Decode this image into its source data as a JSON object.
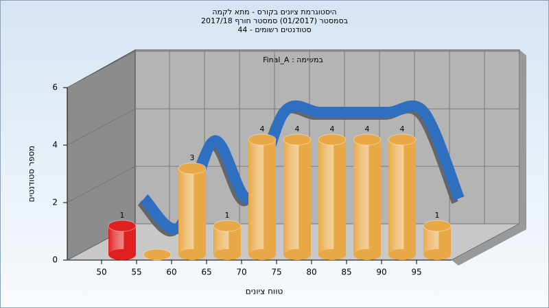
{
  "chart_data": {
    "type": "bar3d",
    "title": [
      "היסטוגרמת ציונים בקורס - מתא לקמה",
      "בסמסטר  (01/2017)  סמסטר חורף 2017/18",
      "סטודנטים רשומים - 44"
    ],
    "annotation": "Final_A : במשימה",
    "x_label": "טווח ציונים",
    "y_label": "מספר סטודנטים",
    "categories": [
      "50",
      "55",
      "60",
      "65",
      "70",
      "75",
      "80",
      "85",
      "90",
      "95"
    ],
    "series": [
      {
        "type": "bar",
        "color": "#e8a846",
        "colors": [
          "#e02020",
          "#e8a846",
          "#e8a846",
          "#e8a846",
          "#e8a846",
          "#e8a846",
          "#e8a846",
          "#e8a846",
          "#e8a846",
          "#e8a846"
        ],
        "values": [
          1,
          0,
          3,
          1,
          4,
          4,
          4,
          4,
          4,
          1
        ]
      },
      {
        "type": "line",
        "color": "#2f6fbf",
        "values": [
          1,
          0,
          3,
          1,
          4,
          4,
          4,
          4,
          4,
          1
        ]
      }
    ],
    "ylim": [
      0,
      6
    ],
    "yticks": [
      0,
      2,
      4,
      6
    ],
    "grid": true
  }
}
